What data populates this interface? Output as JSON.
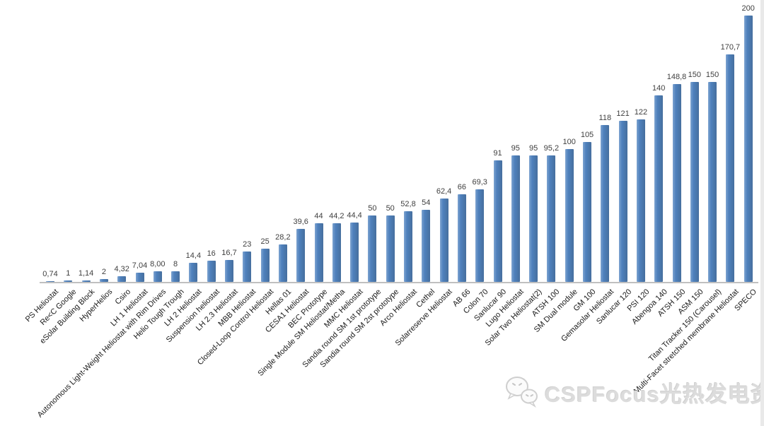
{
  "chart_data": {
    "type": "bar",
    "title": "",
    "xlabel": "",
    "ylabel": "",
    "ylim": [
      0,
      200
    ],
    "grid": false,
    "legend": false,
    "bar_color": "#4f81bd",
    "baseline_color": "#c0c0c0",
    "value_label_color": "#3f3f3f",
    "categories": [
      "PS Heliostat",
      "Re<C Google",
      "eSolar Building Block",
      "HyperHelios",
      "Csiro",
      "LH 1 Heliostat",
      "Autonomous Light-Weight Heliostat with Rim Drives",
      "Helio Tough Trough",
      "LH 2 Heliostat",
      "Suspension heliostat",
      "LH 2.3 Heliostat",
      "MBB Heliostat",
      "Closed-Loop Control Heliostat",
      "Hellas 01",
      "CESA1 Heliostat",
      "BEC Prototype",
      "Single Module SM Heliostat/Metha",
      "MMC Heliostat",
      "Sandia round SM 1st prototype",
      "Sandia round SM 2st prototype",
      "Arco Heliostat",
      "Cethel",
      "Solarreserve Heliostat",
      "AB 66",
      "Colon 70",
      "Sanlucar 90",
      "Lugo Heliostat",
      "Solar Two Heliostat(2)",
      "ATSH 100",
      "SM Dual module",
      "GM 100",
      "Gemasolar Heliostat",
      "Sanlucar 120",
      "PSI 120",
      "Abengoa 140",
      "ATSH 150",
      "ASM 150",
      "Titan Tracker 150 (Carousel)",
      "Multi-Facet stretched membrane Heliostat",
      "SPECO"
    ],
    "values": [
      0.74,
      1,
      1.14,
      2,
      4.32,
      7.04,
      8,
      8,
      14.4,
      16,
      16.7,
      23,
      25,
      28.2,
      39.6,
      44,
      44.2,
      44.4,
      50,
      50,
      52.8,
      54,
      62.4,
      66,
      69.3,
      91,
      95,
      95,
      95.2,
      100,
      105,
      118,
      121,
      122,
      140,
      148.8,
      150,
      150,
      170.7,
      200
    ],
    "value_labels": [
      "0,74",
      "1",
      "1,14",
      "2",
      "4,32",
      "7,04",
      "8,00",
      "8",
      "14,4",
      "16",
      "16,7",
      "23",
      "25",
      "28,2",
      "39,6",
      "44",
      "44,2",
      "44,4",
      "50",
      "50",
      "52,8",
      "54",
      "62,4",
      "66",
      "69,3",
      "91",
      "95",
      "95",
      "95,2",
      "100",
      "105",
      "118",
      "121",
      "122",
      "140",
      "148,8",
      "150",
      "150",
      "170,7",
      "200"
    ]
  },
  "watermark": {
    "icon": "wechat-icon",
    "text": "CSPFocus光热发电资讯",
    "color": "#dcdcdc"
  }
}
